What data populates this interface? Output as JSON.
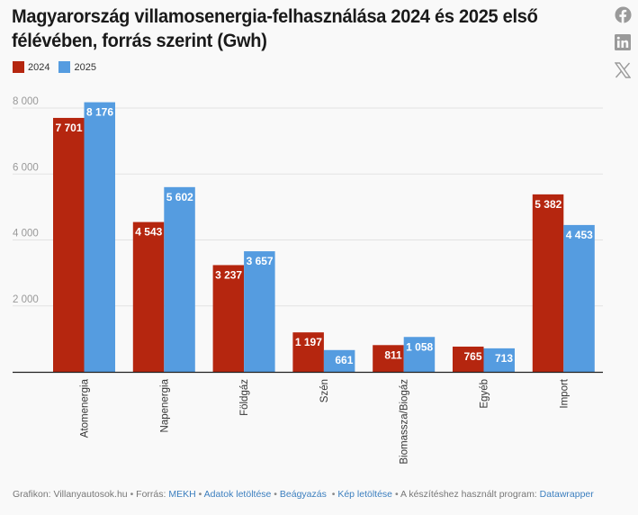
{
  "title": "Magyarország villamosenergia-felhasználása 2024 és 2025 első félévében, forrás szerint (Gwh)",
  "share": {
    "facebook": "facebook-icon",
    "linkedin": "linkedin-icon",
    "x": "x-icon"
  },
  "legend": [
    {
      "label": "2024",
      "color": "#b5260f"
    },
    {
      "label": "2025",
      "color": "#559ce0"
    }
  ],
  "chart_data": {
    "type": "bar",
    "title": "Magyarország villamosenergia-felhasználása 2024 és 2025 első félévében, forrás szerint (Gwh)",
    "xlabel": "",
    "ylabel": "",
    "ylim": [
      0,
      8000
    ],
    "yticks": [
      2000,
      4000,
      6000,
      8000
    ],
    "ytick_labels": [
      "2 000",
      "4 000",
      "6 000",
      "8 000"
    ],
    "grid": true,
    "legend_position": "top-left",
    "categories": [
      "Atomenergia",
      "Napenergia",
      "Földgáz",
      "Szén",
      "Biomassza/Biogáz",
      "Egyéb",
      "Import"
    ],
    "series": [
      {
        "name": "2024",
        "color": "#b5260f",
        "values": [
          7701,
          4543,
          3237,
          1197,
          811,
          765,
          5382
        ],
        "labels": [
          "7 701",
          "4 543",
          "3 237",
          "1 197",
          "811",
          "765",
          "5 382"
        ]
      },
      {
        "name": "2025",
        "color": "#559ce0",
        "values": [
          8176,
          5602,
          3657,
          661,
          1058,
          713,
          4453
        ],
        "labels": [
          "8 176",
          "5 602",
          "3 657",
          "661",
          "1 058",
          "713",
          "4 453"
        ]
      }
    ]
  },
  "footer": {
    "credit": "Grafikon: Villanyautosok.hu",
    "source_label": "Forrás:",
    "source_link": "MEKH",
    "download_data": "Adatok letöltése",
    "embed": "Beágyazás",
    "download_image": "Kép letöltése",
    "made_with_label": "A készítéshez használt program:",
    "made_with_link": "Datawrapper",
    "separator": "•"
  }
}
